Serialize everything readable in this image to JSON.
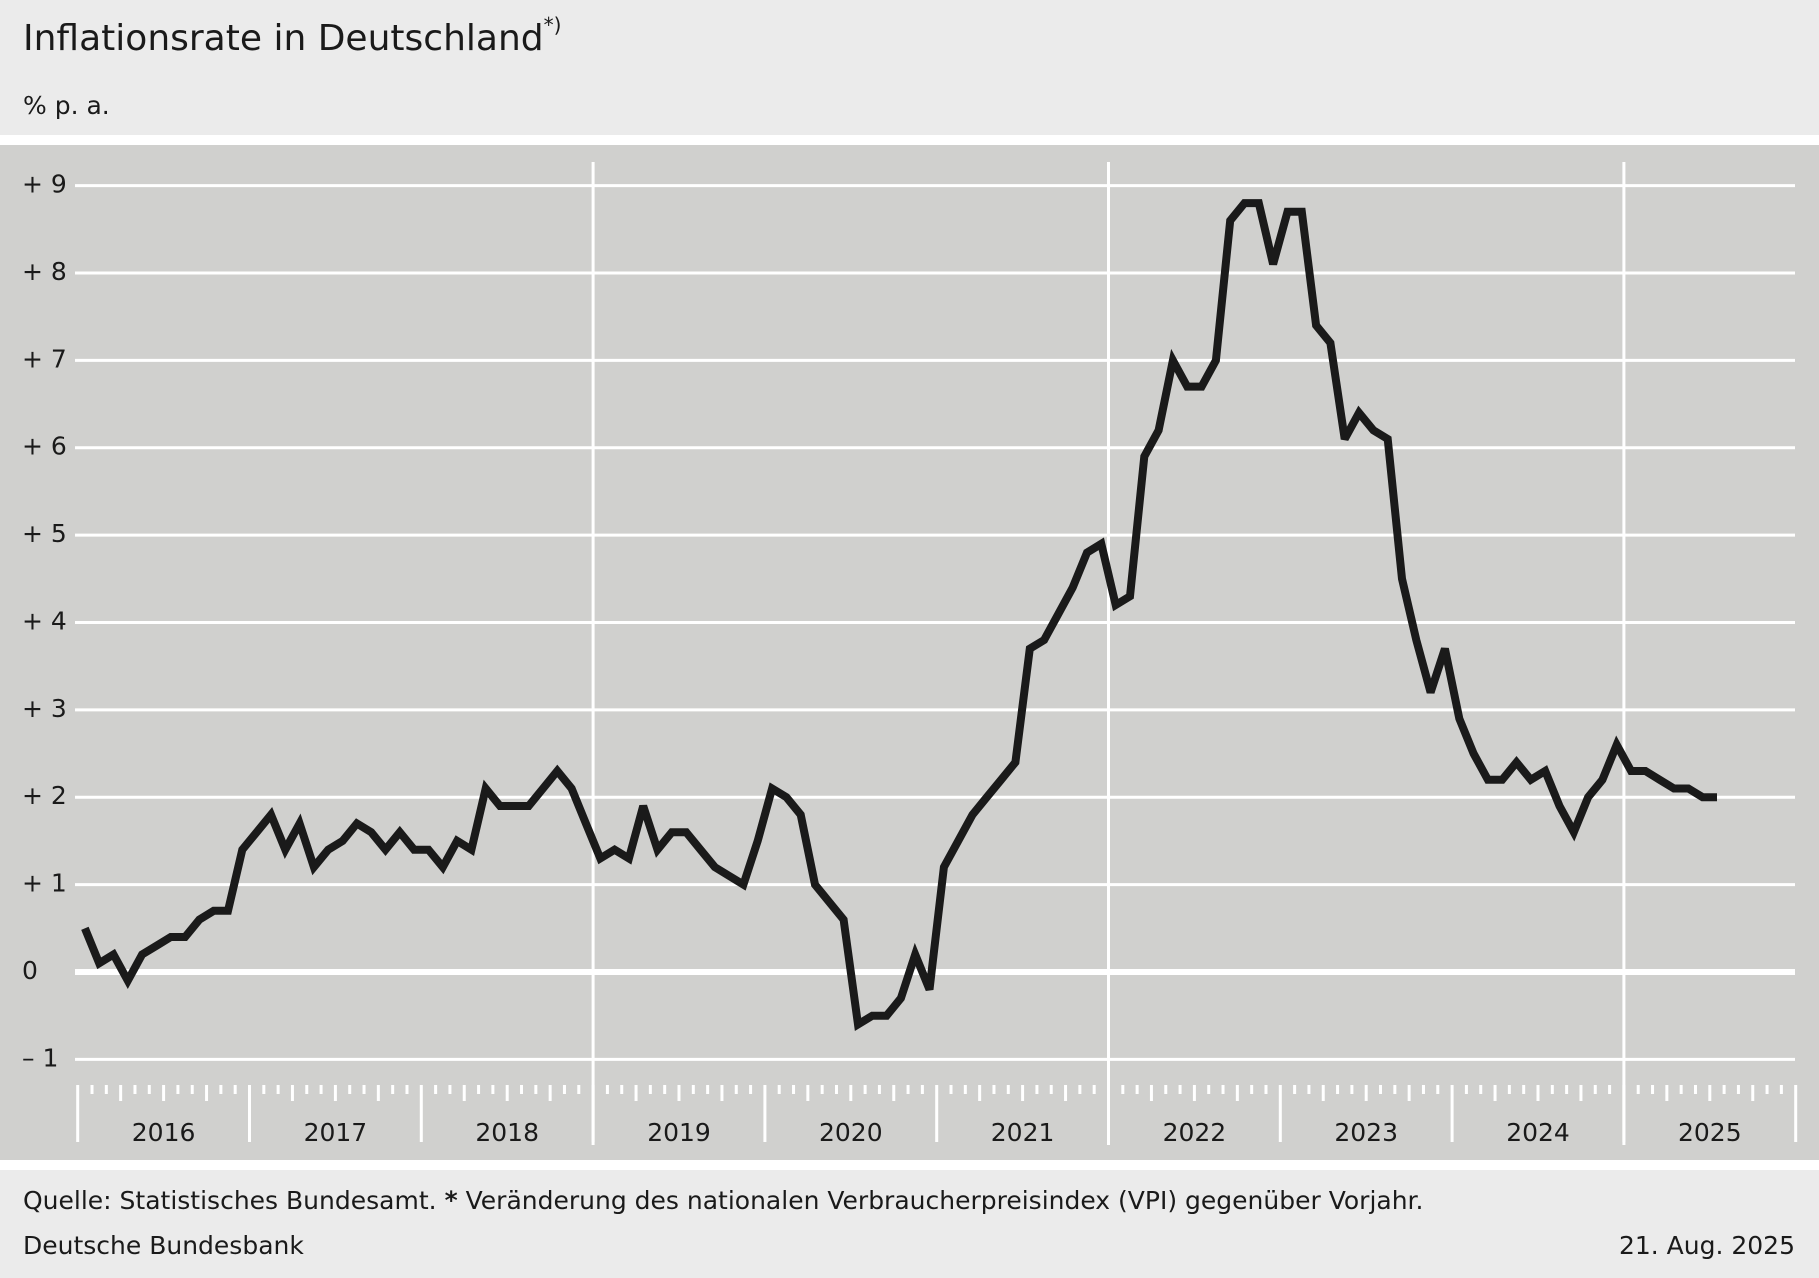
{
  "chart_data": {
    "type": "line",
    "title": "Inflationsrate in Deutschland",
    "title_note": "*)",
    "subtitle": "% p. a.",
    "x_labels": [
      "2016",
      "2017",
      "2018",
      "2019",
      "2020",
      "2021",
      "2022",
      "2023",
      "2024",
      "2025"
    ],
    "series": [
      {
        "color": "#1a1a1a",
        "values": [
          0.5,
          0.1,
          0.2,
          -0.1,
          0.2,
          0.3,
          0.4,
          0.4,
          0.6,
          0.7,
          0.7,
          1.4,
          1.6,
          1.8,
          1.4,
          1.7,
          1.2,
          1.4,
          1.5,
          1.7,
          1.6,
          1.4,
          1.6,
          1.4,
          1.4,
          1.2,
          1.5,
          1.4,
          2.1,
          1.9,
          1.9,
          1.9,
          2.1,
          2.3,
          2.1,
          1.7,
          1.3,
          1.4,
          1.3,
          1.9,
          1.4,
          1.6,
          1.6,
          1.4,
          1.2,
          1.1,
          1.0,
          1.5,
          2.1,
          2.0,
          1.8,
          1.0,
          0.8,
          0.6,
          -0.6,
          -0.5,
          -0.5,
          -0.3,
          0.2,
          -0.2,
          1.2,
          1.5,
          1.8,
          2.0,
          2.2,
          2.4,
          3.7,
          3.8,
          4.1,
          4.4,
          4.8,
          4.9,
          4.2,
          4.3,
          5.9,
          6.2,
          7.0,
          6.7,
          6.7,
          7.0,
          8.6,
          8.8,
          8.8,
          8.1,
          8.7,
          8.7,
          7.4,
          7.2,
          6.1,
          6.4,
          6.2,
          6.1,
          4.5,
          3.8,
          3.2,
          3.7,
          2.9,
          2.5,
          2.2,
          2.2,
          2.4,
          2.2,
          2.3,
          1.9,
          1.6,
          2.0,
          2.2,
          2.6,
          2.3,
          2.3,
          2.2,
          2.1,
          2.1,
          2.0,
          2.0
        ]
      }
    ],
    "ylim": [
      -1,
      9
    ],
    "yticks": [
      {
        "value": -1,
        "label": "– 1"
      },
      0,
      {
        "value": 1,
        "label": "+ 1"
      },
      {
        "value": 2,
        "label": "+ 2"
      },
      {
        "value": 3,
        "label": "+ 3"
      },
      {
        "value": 4,
        "label": "+ 4"
      },
      {
        "value": 5,
        "label": "+ 5"
      },
      {
        "value": 6,
        "label": "+ 6"
      },
      {
        "value": 7,
        "label": "+ 7"
      },
      {
        "value": 8,
        "label": "+ 8"
      },
      {
        "value": 9,
        "label": "+ 9"
      }
    ],
    "grid": true,
    "source": "Quelle: Statistisches Bundesamt.",
    "footnote_mark": "*",
    "footnote": "Veränderung des nationalen Verbraucherpreisindex (VPI) gegenüber Vorjahr.",
    "publisher": "Deutsche Bundesbank",
    "date": "21. Aug. 2025"
  }
}
